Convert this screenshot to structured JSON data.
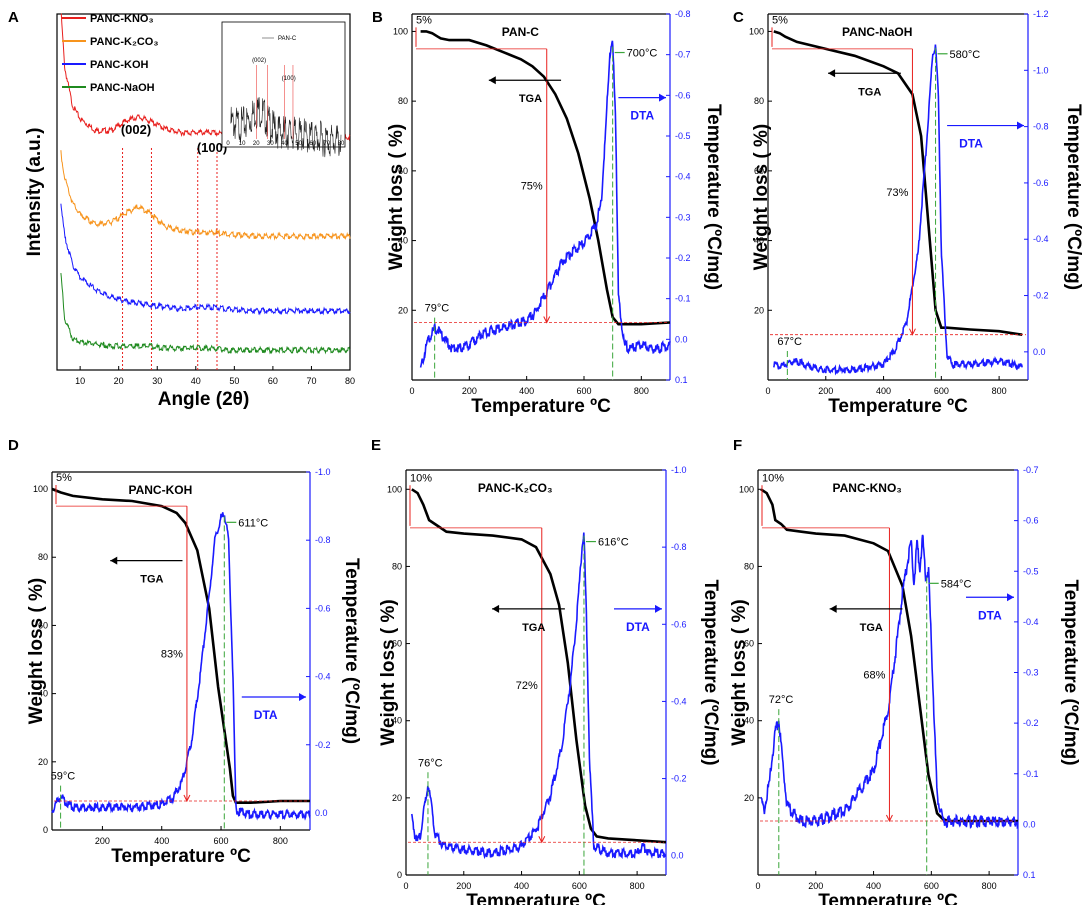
{
  "chart_data": [
    {
      "id": "A",
      "panel_label": "A",
      "type": "line",
      "title": "",
      "xlabel": "Angle (2θ)",
      "ylabel": "Intensity (a.u.)",
      "xlim": [
        4,
        80
      ],
      "xticks": [
        10,
        20,
        30,
        40,
        50,
        60,
        70,
        80
      ],
      "series": [
        {
          "name": "PANC-KNO₃",
          "color": "#e8201e",
          "offset": 0.66,
          "x": [
            4,
            6,
            8,
            10,
            14,
            18,
            22,
            25,
            28,
            32,
            36,
            40,
            44,
            48,
            55,
            65,
            80
          ],
          "y": [
            0.95,
            0.35,
            0.16,
            0.09,
            0.03,
            0.03,
            0.08,
            0.1,
            0.08,
            0.04,
            0.02,
            0.02,
            0.02,
            0.01,
            0.0,
            0.0,
            0.0
          ]
        },
        {
          "name": "PANC-K₂CO₃",
          "color": "#f7941d",
          "offset": 0.38,
          "x": [
            4,
            6,
            8,
            10,
            14,
            18,
            22,
            25,
            28,
            32,
            36,
            40,
            44,
            48,
            55,
            65,
            80
          ],
          "y": [
            0.55,
            0.3,
            0.17,
            0.11,
            0.06,
            0.07,
            0.12,
            0.15,
            0.12,
            0.05,
            0.03,
            0.02,
            0.02,
            0.01,
            0.0,
            0.0,
            0.0
          ]
        },
        {
          "name": "PANC-KOH",
          "color": "#1a1aff",
          "offset": 0.17,
          "x": [
            4,
            6,
            8,
            10,
            14,
            18,
            22,
            25,
            28,
            32,
            36,
            40,
            44,
            48,
            55,
            65,
            80
          ],
          "y": [
            0.72,
            0.38,
            0.24,
            0.17,
            0.11,
            0.07,
            0.05,
            0.04,
            0.03,
            0.02,
            0.01,
            0.02,
            0.02,
            0.01,
            0.0,
            0.0,
            0.0
          ]
        },
        {
          "name": "PANC-NaOH",
          "color": "#1f8a1f",
          "offset": 0.06,
          "x": [
            4,
            6,
            8,
            10,
            14,
            18,
            22,
            25,
            28,
            32,
            36,
            40,
            44,
            48,
            55,
            65,
            80
          ],
          "y": [
            0.62,
            0.16,
            0.06,
            0.04,
            0.03,
            0.02,
            0.02,
            0.02,
            0.02,
            0.01,
            0.01,
            0.01,
            0.01,
            0.0,
            0.0,
            0.0,
            0.0
          ]
        }
      ],
      "annotations": [
        "(002)",
        "(100)"
      ],
      "guide_lines_x": [
        21,
        28.5,
        40.5,
        45.5
      ],
      "inset": {
        "legend": "PAN-C",
        "labels": [
          "(002)",
          "(100)"
        ],
        "xticks": [
          0,
          10,
          20,
          30,
          40,
          50,
          60,
          70,
          80
        ]
      }
    },
    {
      "id": "B",
      "panel_label": "B",
      "type": "line",
      "title": "PAN-C",
      "xlabel": "Temperature ºC",
      "ylabel": "Weight loss ( %)",
      "y2label": "Temperature (ºC/mg)",
      "xlim": [
        0,
        900
      ],
      "xticks": [
        0,
        200,
        400,
        600,
        800
      ],
      "ylim": [
        0,
        105
      ],
      "yticks": [
        20,
        40,
        60,
        80,
        100
      ],
      "y2lim": [
        0.1,
        -0.8
      ],
      "y2ticks": [
        "0.1",
        "0.0",
        "-0.1",
        "-0.2",
        "-0.3",
        "-0.4",
        "-0.5",
        "-0.6",
        "-0.7",
        "-0.8"
      ],
      "tga": {
        "x": [
          30,
          50,
          70,
          90,
          100,
          130,
          200,
          260,
          320,
          380,
          420,
          460,
          500,
          540,
          580,
          620,
          650,
          680,
          700,
          720,
          730,
          760,
          800,
          900
        ],
        "y": [
          100,
          100,
          99.5,
          98.5,
          98,
          97.5,
          97.5,
          96,
          94,
          92,
          90,
          87,
          82,
          75,
          65,
          52,
          40,
          26,
          18,
          16,
          16,
          16,
          16,
          16.5
        ]
      },
      "dta": {
        "x": [
          30,
          50,
          70,
          80,
          90,
          110,
          140,
          200,
          250,
          300,
          350,
          400,
          430,
          470,
          520,
          560,
          600,
          640,
          660,
          675,
          690,
          700,
          710,
          720,
          740,
          760,
          800,
          850,
          900
        ],
        "y": [
          0.08,
          0.02,
          -0.01,
          -0.02,
          -0.015,
          0.0,
          0.03,
          0.02,
          -0.01,
          -0.02,
          -0.03,
          -0.04,
          -0.06,
          -0.11,
          -0.18,
          -0.21,
          -0.23,
          -0.27,
          -0.33,
          -0.5,
          -0.7,
          -0.72,
          -0.55,
          -0.1,
          0.02,
          0.03,
          0.02,
          0.03,
          0.02
        ]
      },
      "dta_peak": {
        "x": 700,
        "label": "700°C"
      },
      "dta_small_peak": {
        "x": 79,
        "label": "79°C"
      },
      "loss_label": "75%",
      "init_label": "5%",
      "tga_arrow_label": "TGA",
      "dta_arrow_label": "DTA",
      "vert_marker_x": 470
    },
    {
      "id": "C",
      "panel_label": "C",
      "type": "line",
      "title": "PANC-NaOH",
      "xlabel": "Temperature ºC",
      "ylabel": "Weight loss ( %)",
      "y2label": "Temperature (ºC/mg)",
      "xlim": [
        0,
        900
      ],
      "xticks": [
        0,
        200,
        400,
        600,
        800
      ],
      "ylim": [
        0,
        105
      ],
      "yticks": [
        20,
        40,
        60,
        80,
        100
      ],
      "y2lim": [
        0.1,
        -1.2
      ],
      "y2ticks": [
        "0.0",
        "-0.2",
        "-0.4",
        "-0.6",
        "-0.8",
        "-1.0",
        "-1.2"
      ],
      "tga": {
        "x": [
          20,
          40,
          60,
          100,
          200,
          300,
          400,
          450,
          500,
          530,
          560,
          580,
          600,
          620,
          700,
          800,
          880
        ],
        "y": [
          100,
          99.5,
          98.5,
          97,
          95,
          93,
          90,
          88,
          82,
          70,
          40,
          20,
          15,
          15,
          14.5,
          14,
          13
        ]
      },
      "dta": {
        "x": [
          20,
          40,
          60,
          80,
          100,
          150,
          200,
          300,
          400,
          440,
          480,
          520,
          550,
          570,
          580,
          590,
          600,
          620,
          640,
          700,
          800,
          880
        ],
        "y": [
          0.05,
          0.06,
          0.05,
          0.04,
          0.04,
          0.06,
          0.07,
          0.07,
          0.05,
          0.0,
          -0.1,
          -0.35,
          -0.75,
          -1.05,
          -1.08,
          -0.9,
          -0.35,
          0.02,
          0.05,
          0.05,
          0.04,
          0.06
        ]
      },
      "dta_peak": {
        "x": 580,
        "label": "580°C"
      },
      "dta_small_peak": {
        "x": 67,
        "label": "67°C"
      },
      "loss_label": "73%",
      "init_label": "5%",
      "tga_arrow_label": "TGA",
      "dta_arrow_label": "DTA",
      "vert_marker_x": 500
    },
    {
      "id": "D",
      "panel_label": "D",
      "type": "line",
      "title": "PANC-KOH",
      "xlabel": "Temperature ºC",
      "ylabel": "Weight loss ( %)",
      "y2label": "Temperature (ºC/mg)",
      "xlim": [
        30,
        900
      ],
      "xticks": [
        200,
        400,
        600,
        800
      ],
      "ylim": [
        0,
        105
      ],
      "yticks": [
        0,
        20,
        40,
        60,
        80,
        100
      ],
      "y2lim": [
        0.05,
        -1.0
      ],
      "y2ticks": [
        "0.0",
        "-0.2",
        "-0.4",
        "-0.6",
        "-0.8",
        "-1.0"
      ],
      "tga": {
        "x": [
          30,
          60,
          100,
          200,
          300,
          400,
          450,
          480,
          520,
          560,
          590,
          610,
          630,
          640,
          650,
          700,
          800,
          900
        ],
        "y": [
          100,
          99,
          98,
          97,
          96.5,
          95,
          93,
          90,
          82,
          65,
          42,
          30,
          18,
          10,
          8,
          8,
          8.5,
          8.5
        ]
      },
      "dta": {
        "x": [
          30,
          50,
          60,
          80,
          100,
          200,
          300,
          400,
          440,
          470,
          500,
          530,
          560,
          580,
          600,
          611,
          625,
          640,
          650,
          700,
          800,
          900
        ],
        "y": [
          0.0,
          -0.03,
          -0.04,
          -0.02,
          -0.01,
          -0.01,
          -0.01,
          -0.02,
          -0.04,
          -0.09,
          -0.2,
          -0.4,
          -0.63,
          -0.8,
          -0.86,
          -0.87,
          -0.8,
          -0.4,
          0.0,
          0.01,
          0.01,
          0.01
        ]
      },
      "dta_peak": {
        "x": 611,
        "label": "611°C"
      },
      "dta_small_peak": {
        "x": 59,
        "label": "59°C"
      },
      "loss_label": "83%",
      "init_label": "5%",
      "tga_arrow_label": "TGA",
      "dta_arrow_label": "DTA",
      "vert_marker_x": 485
    },
    {
      "id": "E",
      "panel_label": "E",
      "type": "line",
      "title": "PANC-K₂CO₃",
      "xlabel": "Temperature ºC",
      "ylabel": "Weight loss ( %)",
      "y2label": "Temperature (ºC/mg)",
      "xlim": [
        0,
        900
      ],
      "xticks": [
        0,
        200,
        400,
        600,
        800
      ],
      "ylim": [
        0,
        105
      ],
      "yticks": [
        0,
        20,
        40,
        60,
        80,
        100
      ],
      "y2lim": [
        0.05,
        -1.0
      ],
      "y2ticks": [
        "0.0",
        "-0.2",
        "-0.4",
        "-0.6",
        "-0.8",
        "-1.0"
      ],
      "tga": {
        "x": [
          20,
          40,
          60,
          80,
          100,
          140,
          200,
          300,
          400,
          450,
          500,
          530,
          560,
          590,
          620,
          640,
          660,
          700,
          800,
          900
        ],
        "y": [
          100,
          99,
          96,
          92,
          91,
          89,
          88.5,
          88,
          87,
          85,
          78,
          70,
          55,
          35,
          18,
          12,
          10,
          9.5,
          9,
          8.5
        ]
      },
      "dta": {
        "x": [
          20,
          30,
          40,
          50,
          60,
          76,
          90,
          100,
          130,
          200,
          300,
          400,
          450,
          500,
          540,
          570,
          590,
          600,
          610,
          616,
          625,
          635,
          650,
          700,
          800,
          820,
          840,
          900
        ],
        "y": [
          -0.1,
          -0.05,
          -0.03,
          -0.05,
          -0.1,
          -0.18,
          -0.12,
          -0.05,
          -0.02,
          -0.01,
          0.0,
          -0.02,
          -0.06,
          -0.15,
          -0.28,
          -0.45,
          -0.6,
          -0.7,
          -0.8,
          -0.83,
          -0.6,
          -0.25,
          -0.02,
          0.0,
          0.0,
          -0.02,
          0.0,
          0.0
        ]
      },
      "dta_peak": {
        "x": 616,
        "label": "616°C"
      },
      "dta_small_peak": {
        "x": 76,
        "label": "76°C"
      },
      "loss_label": "72%",
      "init_label": "10%",
      "tga_arrow_label": "TGA",
      "dta_arrow_label": "DTA",
      "vert_marker_x": 470
    },
    {
      "id": "F",
      "panel_label": "F",
      "type": "line",
      "title": "PANC-KNO₃",
      "xlabel": "Temperature ºC",
      "ylabel": "Weight loss ( %)",
      "y2label": "Temperature (ºC/mg)",
      "xlim": [
        0,
        900
      ],
      "xticks": [
        0,
        200,
        400,
        600,
        800
      ],
      "ylim": [
        0,
        105
      ],
      "yticks": [
        20,
        40,
        60,
        80,
        100
      ],
      "y2lim": [
        0.1,
        -0.7
      ],
      "y2ticks": [
        "0.1",
        "0.0",
        "-0.1",
        "-0.2",
        "-0.3",
        "-0.4",
        "-0.5",
        "-0.6",
        "-0.7"
      ],
      "tga": {
        "x": [
          10,
          30,
          50,
          60,
          80,
          100,
          150,
          200,
          300,
          400,
          450,
          500,
          530,
          560,
          590,
          620,
          640,
          660,
          700,
          800,
          900
        ],
        "y": [
          100,
          99,
          96,
          92,
          91,
          89.5,
          89,
          88.5,
          88,
          86,
          84,
          75,
          62,
          44,
          26,
          16,
          14.5,
          14,
          14,
          14,
          14
        ]
      },
      "dta": {
        "x": [
          10,
          20,
          40,
          60,
          72,
          85,
          100,
          150,
          200,
          300,
          400,
          450,
          480,
          500,
          520,
          530,
          540,
          550,
          560,
          570,
          580,
          590,
          600,
          610,
          620,
          640,
          700,
          800,
          900
        ],
        "y": [
          -0.05,
          -0.02,
          -0.08,
          -0.18,
          -0.2,
          -0.12,
          -0.03,
          0.0,
          0.0,
          -0.02,
          -0.1,
          -0.22,
          -0.35,
          -0.45,
          -0.52,
          -0.55,
          -0.47,
          -0.55,
          -0.5,
          -0.56,
          -0.48,
          -0.5,
          -0.35,
          -0.2,
          -0.05,
          0.0,
          0.0,
          0.0,
          0.0
        ]
      },
      "dta_peak": {
        "x": 584,
        "label": "584°C"
      },
      "dta_small_peak": {
        "x": 72,
        "label": "72°C"
      },
      "loss_label": "68%",
      "init_label": "10%",
      "tga_arrow_label": "TGA",
      "dta_arrow_label": "DTA",
      "vert_marker_x": 455
    }
  ]
}
